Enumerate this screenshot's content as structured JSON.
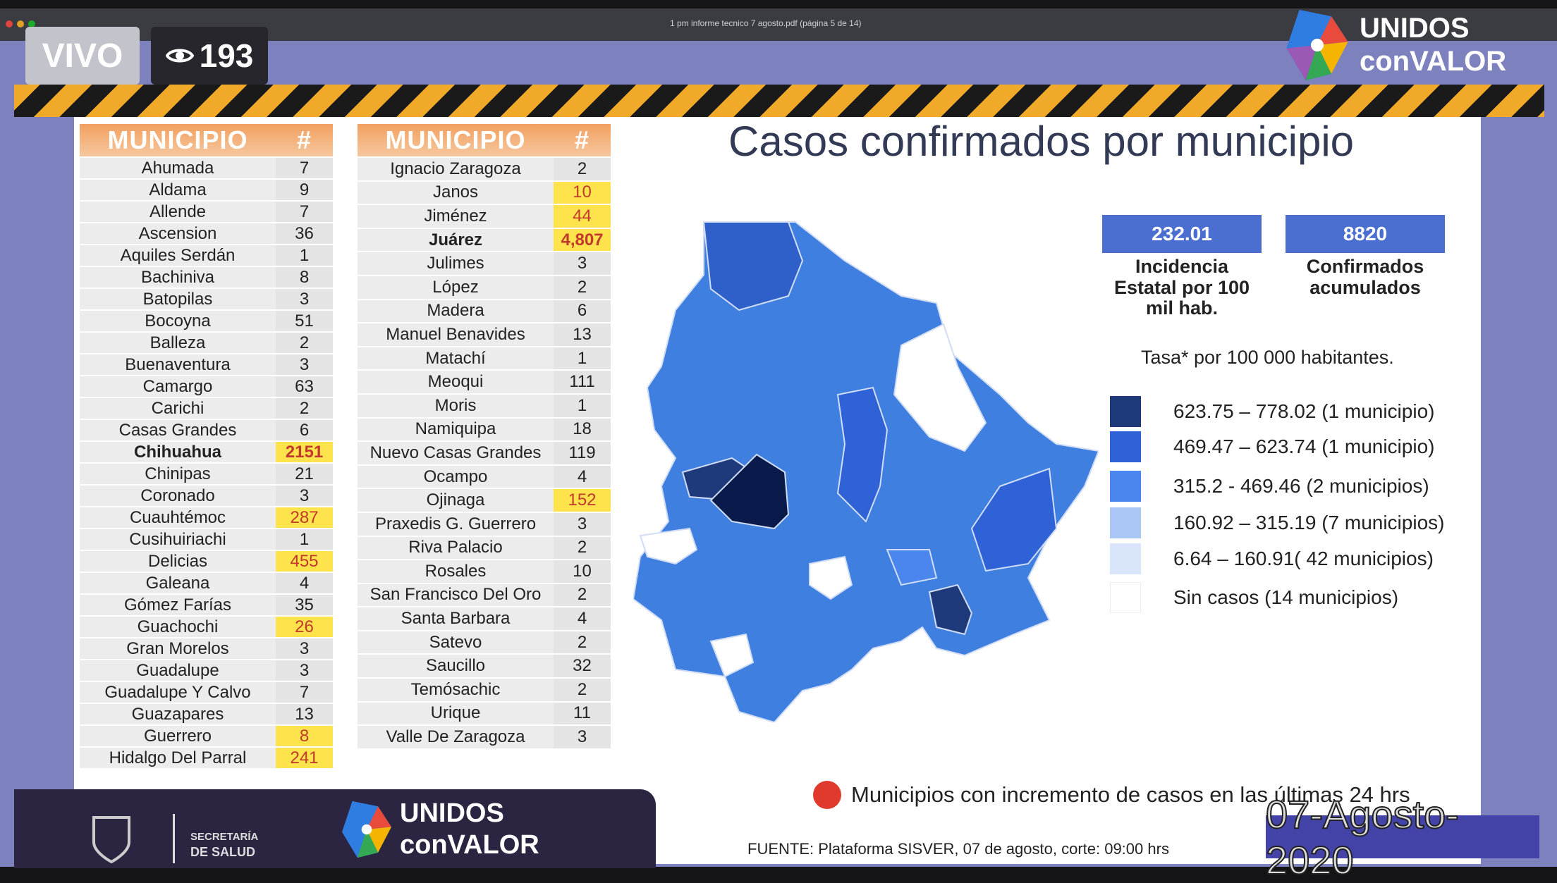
{
  "window": {
    "title": "1 pm informe tecnico 7 agosto.pdf (página 5 de 14)"
  },
  "stream": {
    "live_label": "VIVO",
    "viewers": "193",
    "eye_icon": "eye-icon"
  },
  "brand": {
    "line1": "UNIDOS",
    "line2": "conVALOR"
  },
  "tables": {
    "header_municipio": "MUNICIPIO",
    "header_count": "#",
    "left": [
      [
        "Ahumada",
        "7",
        ""
      ],
      [
        "Aldama",
        "9",
        ""
      ],
      [
        "Allende",
        "7",
        ""
      ],
      [
        "Ascension",
        "36",
        ""
      ],
      [
        "Aquiles Serdán",
        "1",
        ""
      ],
      [
        "Bachiniva",
        "8",
        ""
      ],
      [
        "Batopilas",
        "3",
        ""
      ],
      [
        "Bocoyna",
        "51",
        ""
      ],
      [
        "Balleza",
        "2",
        ""
      ],
      [
        "Buenaventura",
        "3",
        ""
      ],
      [
        "Camargo",
        "63",
        ""
      ],
      [
        "Carichi",
        "2",
        ""
      ],
      [
        "Casas Grandes",
        "6",
        ""
      ],
      [
        "Chihuahua",
        "2151",
        "hb"
      ],
      [
        "Chinipas",
        "21",
        ""
      ],
      [
        "Coronado",
        "3",
        ""
      ],
      [
        "Cuauhtémoc",
        "287",
        "h"
      ],
      [
        "Cusihuiriachi",
        "1",
        ""
      ],
      [
        "Delicias",
        "455",
        "h"
      ],
      [
        "Galeana",
        "4",
        ""
      ],
      [
        "Gómez Farías",
        "35",
        ""
      ],
      [
        "Guachochi",
        "26",
        "h"
      ],
      [
        "Gran Morelos",
        "3",
        ""
      ],
      [
        "Guadalupe",
        "3",
        ""
      ],
      [
        "Guadalupe Y Calvo",
        "7",
        ""
      ],
      [
        "Guazapares",
        "13",
        ""
      ],
      [
        "Guerrero",
        "8",
        "h"
      ],
      [
        "Hidalgo Del Parral",
        "241",
        "h"
      ]
    ],
    "right": [
      [
        "Ignacio Zaragoza",
        "2",
        ""
      ],
      [
        "Janos",
        "10",
        "h"
      ],
      [
        "Jiménez",
        "44",
        "h"
      ],
      [
        "Juárez",
        "4,807",
        "hb"
      ],
      [
        "Julimes",
        "3",
        ""
      ],
      [
        "López",
        "2",
        ""
      ],
      [
        "Madera",
        "6",
        ""
      ],
      [
        "Manuel Benavides",
        "13",
        ""
      ],
      [
        "Matachí",
        "1",
        ""
      ],
      [
        "Meoqui",
        "111",
        ""
      ],
      [
        "Moris",
        "1",
        ""
      ],
      [
        "Namiquipa",
        "18",
        ""
      ],
      [
        "Nuevo Casas Grandes",
        "119",
        ""
      ],
      [
        "Ocampo",
        "4",
        ""
      ],
      [
        "Ojinaga",
        "152",
        "h"
      ],
      [
        "Praxedis G. Guerrero",
        "3",
        ""
      ],
      [
        "Riva Palacio",
        "2",
        ""
      ],
      [
        "Rosales",
        "10",
        ""
      ],
      [
        "San Francisco Del Oro",
        "2",
        ""
      ],
      [
        "Santa Barbara",
        "4",
        ""
      ],
      [
        "Satevo",
        "2",
        ""
      ],
      [
        "Saucillo",
        "32",
        ""
      ],
      [
        "Temósachic",
        "2",
        ""
      ],
      [
        "Urique",
        "11",
        ""
      ],
      [
        "Valle De Zaragoza",
        "3",
        ""
      ]
    ]
  },
  "main": {
    "title": "Casos confirmados por municipio",
    "stat1": {
      "value": "232.01",
      "label": "Incidencia Estatal por 100 mil hab."
    },
    "stat2": {
      "value": "8820",
      "label": "Confirmados acumulados"
    },
    "rate_note": "Tasa* por 100 000 habitantes.",
    "legend": [
      {
        "label": "623.75 – 778.02 (1 municipio)",
        "color": "#1f3a7a"
      },
      {
        "label": "469.47 – 623.74 (1 municipio)",
        "color": "#2f62d6"
      },
      {
        "label": "315.2  - 469.46 (2 municipios)",
        "color": "#4a86ee"
      },
      {
        "label": "160.92 – 315.19 (7 municipios)",
        "color": "#a9c6f4"
      },
      {
        "label": "6.64 – 160.91( 42 municipios)",
        "color": "#d8e5fb"
      },
      {
        "label": "Sin casos (14 municipios)",
        "color": "#ffffff"
      }
    ],
    "increment_note": "Municipios con incremento de casos en las últimas 24 hrs",
    "source": "FUENTE: Plataforma SISVER, 07 de agosto, corte: 09:00 hrs",
    "date": "07-Agosto-2020"
  },
  "footer": {
    "secretaria_line1": "SECRETARÍA",
    "secretaria_line2": "DE SALUD",
    "brand1": "UNIDOS",
    "brand2": "conVALOR"
  }
}
